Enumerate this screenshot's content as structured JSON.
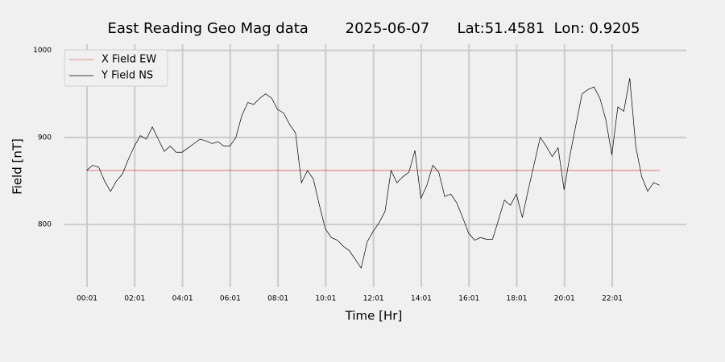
{
  "chart_data": {
    "type": "line",
    "title": "East Reading Geo Mag data        2025-06-07      Lat:51.4581  Lon: 0.9205",
    "x_label": "Time  [Hr]",
    "y_label": "Field  [nT]",
    "x": [
      0,
      0.25,
      0.5,
      0.75,
      1,
      1.25,
      1.5,
      1.75,
      2,
      2.25,
      2.5,
      2.75,
      3,
      3.25,
      3.5,
      3.75,
      4,
      4.25,
      4.5,
      4.75,
      5,
      5.25,
      5.5,
      5.75,
      6,
      6.25,
      6.5,
      6.75,
      7,
      7.25,
      7.5,
      7.75,
      8,
      8.25,
      8.5,
      8.75,
      9,
      9.25,
      9.5,
      9.75,
      10,
      10.25,
      10.5,
      10.75,
      11,
      11.25,
      11.5,
      11.75,
      12,
      12.25,
      12.5,
      12.75,
      13,
      13.25,
      13.5,
      13.75,
      14,
      14.25,
      14.5,
      14.75,
      15,
      15.25,
      15.5,
      15.75,
      16,
      16.25,
      16.5,
      16.75,
      17,
      17.25,
      17.5,
      17.75,
      18,
      18.25,
      18.5,
      18.75,
      19,
      19.25,
      19.5,
      19.75,
      20,
      20.25,
      20.5,
      20.75,
      21,
      21.25,
      21.5,
      21.75,
      22,
      22.25,
      22.5,
      22.75,
      23,
      23.25,
      23.5,
      23.75,
      24
    ],
    "series": [
      {
        "name": "X Field EW",
        "color": "#d62728",
        "width": 0.6,
        "values": [
          862,
          862,
          862,
          862,
          862,
          862,
          862,
          862,
          862,
          862,
          862,
          862,
          862,
          862,
          862,
          862,
          862,
          862,
          862,
          862,
          862,
          862,
          862,
          862,
          862,
          862,
          862,
          862,
          862,
          862,
          862,
          862,
          862,
          862,
          862,
          862,
          862,
          862,
          862,
          862,
          862,
          862,
          862,
          862,
          862,
          862,
          862,
          862,
          862,
          862,
          862,
          862,
          862,
          862,
          862,
          862,
          862,
          862,
          862,
          862,
          862,
          862,
          862,
          862,
          862,
          862,
          862,
          862,
          862,
          862,
          862,
          862,
          862,
          862,
          862,
          862,
          862,
          862,
          862,
          862,
          862,
          862,
          862,
          862,
          862,
          862,
          862,
          862,
          862,
          862,
          862,
          862,
          862,
          862,
          862,
          862,
          862
        ]
      },
      {
        "name": "Y Field NS",
        "color": "#000000",
        "width": 0.7,
        "values": [
          862,
          868,
          866,
          850,
          838,
          850,
          858,
          875,
          890,
          902,
          898,
          912,
          898,
          884,
          890,
          883,
          883,
          888,
          893,
          898,
          896,
          893,
          895,
          890,
          890,
          900,
          925,
          940,
          938,
          945,
          950,
          945,
          932,
          928,
          915,
          905,
          848,
          862,
          852,
          822,
          795,
          785,
          782,
          775,
          770,
          760,
          750,
          780,
          792,
          802,
          815,
          862,
          848,
          855,
          860,
          885,
          830,
          845,
          868,
          860,
          832,
          835,
          825,
          808,
          790,
          782,
          785,
          783,
          783,
          805,
          828,
          822,
          835,
          808,
          840,
          870,
          900,
          890,
          878,
          888,
          840,
          880,
          915,
          950,
          955,
          958,
          945,
          920,
          880,
          935,
          930,
          968,
          890,
          855,
          838,
          848,
          845
        ]
      }
    ],
    "xlim": [
      -0.93,
      25.12
    ],
    "ylim": [
      728,
      1007
    ],
    "xticks": [
      {
        "value": 0.0167,
        "label": "00:01"
      },
      {
        "value": 2.0167,
        "label": "02:01"
      },
      {
        "value": 4.0167,
        "label": "04:01"
      },
      {
        "value": 6.0167,
        "label": "06:01"
      },
      {
        "value": 8.0167,
        "label": "08:01"
      },
      {
        "value": 10.0167,
        "label": "10:01"
      },
      {
        "value": 12.0167,
        "label": "12:01"
      },
      {
        "value": 14.0167,
        "label": "14:01"
      },
      {
        "value": 16.0167,
        "label": "16:01"
      },
      {
        "value": 18.0167,
        "label": "18:01"
      },
      {
        "value": 20.0167,
        "label": "20:01"
      },
      {
        "value": 22.0167,
        "label": "22:01"
      }
    ],
    "yticks": [
      800,
      900,
      1000
    ],
    "grid": true,
    "legend": "upper left"
  }
}
